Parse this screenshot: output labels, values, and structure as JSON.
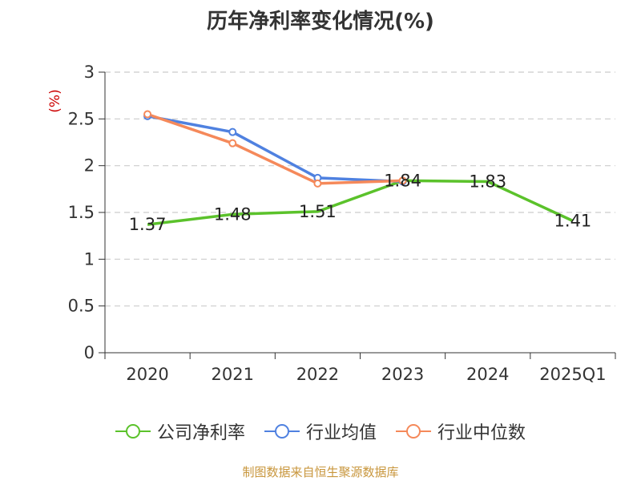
{
  "chart_data": {
    "type": "line",
    "title": "历年净利率变化情况(%)",
    "ylabel": "(%)",
    "xlabel": "",
    "categories": [
      "2020",
      "2021",
      "2022",
      "2023",
      "2024",
      "2025Q1"
    ],
    "ylim": [
      0,
      3
    ],
    "yticks": [
      "0",
      "0.5",
      "1",
      "1.5",
      "2",
      "2.5",
      "3"
    ],
    "grid": true,
    "legend_position": "bottom",
    "series": [
      {
        "name": "公司净利率",
        "color": "#5bc22b",
        "values": [
          1.37,
          1.48,
          1.51,
          1.84,
          1.83,
          1.41
        ],
        "labels": [
          "1.37",
          "1.48",
          "1.51",
          "1.84",
          "1.83",
          "1.41"
        ]
      },
      {
        "name": "行业均值",
        "color": "#4f81e0",
        "values": [
          2.53,
          2.36,
          1.87,
          1.83,
          null,
          null
        ]
      },
      {
        "name": "行业中位数",
        "color": "#f5895a",
        "values": [
          2.55,
          2.24,
          1.81,
          1.84,
          null,
          null
        ]
      }
    ]
  },
  "source_text": "制图数据来自恒生聚源数据库"
}
